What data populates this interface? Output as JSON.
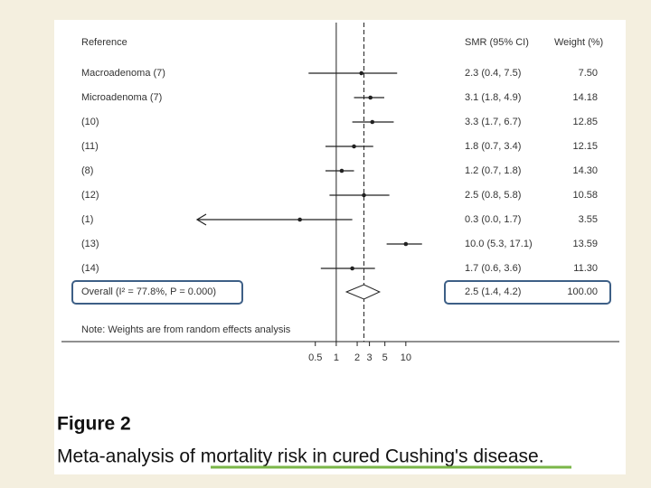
{
  "chart_data": {
    "type": "forest",
    "headers": {
      "study": "Reference",
      "estimate": "SMR (95% CI)",
      "weight": "Weight (%)"
    },
    "categories": [
      "Macroadenoma (7)",
      "Microadenoma (7)",
      "(10)",
      "(11)",
      "(8)",
      "(12)",
      "(1)",
      "(13)",
      "(14)"
    ],
    "values": [
      2.3,
      3.1,
      3.3,
      1.8,
      1.2,
      2.5,
      0.3,
      10.0,
      1.7
    ],
    "lower": [
      0.4,
      1.8,
      1.7,
      0.7,
      0.7,
      0.8,
      0.0,
      5.3,
      0.6
    ],
    "upper": [
      7.5,
      4.9,
      6.7,
      3.4,
      1.8,
      5.8,
      1.7,
      17.1,
      3.6
    ],
    "value_labels": [
      "2.3 (0.4, 7.5)",
      "3.1 (1.8, 4.9)",
      "3.3 (1.7, 6.7)",
      "1.8 (0.7, 3.4)",
      "1.2 (0.7, 1.8)",
      "2.5 (0.8, 5.8)",
      "0.3 (0.0, 1.7)",
      "10.0 (5.3, 17.1)",
      "1.7 (0.6, 3.6)"
    ],
    "weights": [
      "7.50",
      "14.18",
      "12.85",
      "12.15",
      "14.30",
      "10.58",
      "3.55",
      "13.59",
      "11.30"
    ],
    "overall": {
      "label": "Overall (I² = 77.8%, P = 0.000)",
      "value": 2.5,
      "lower": 1.4,
      "upper": 4.2,
      "value_label": "2.5 (1.4, 4.2)",
      "weight": "100.00"
    },
    "note": "Note: Weights are from random effects analysis",
    "reference_line": 1,
    "log_x": true,
    "xlim": [
      0.01,
      20
    ],
    "xticks": [
      0.5,
      1,
      2,
      3,
      5,
      10
    ],
    "color": "#222222",
    "figure_label": "Figure 2",
    "caption": "Meta-analysis of mortality risk in cured Cushing's disease."
  }
}
